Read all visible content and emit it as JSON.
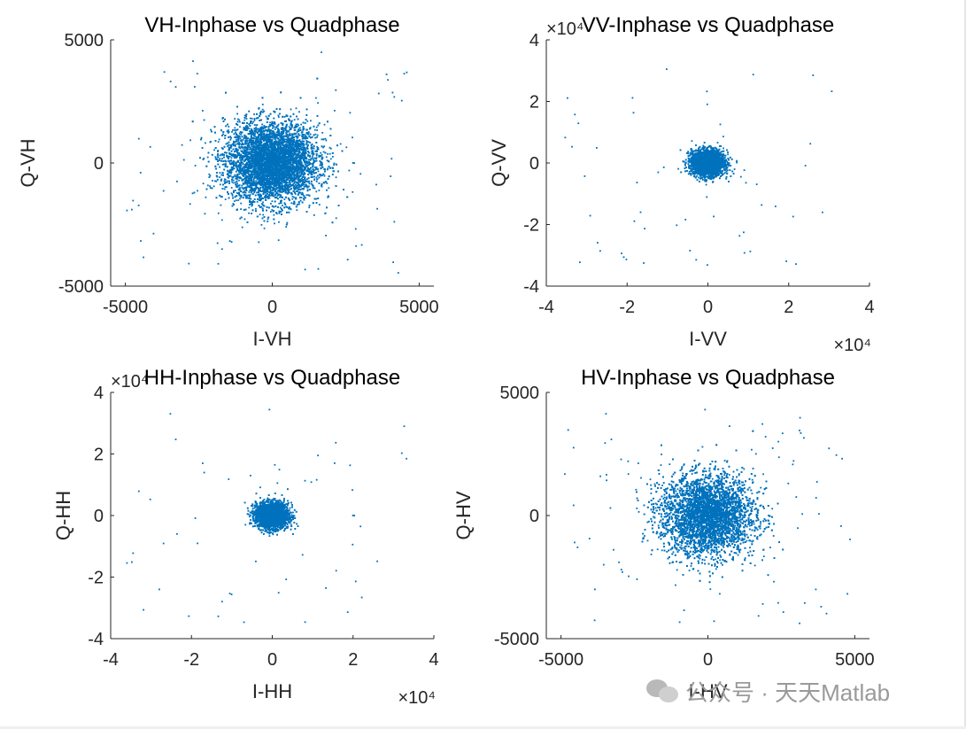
{
  "chart_data": [
    {
      "type": "scatter",
      "title": "VH-Inphase vs Quadphase",
      "xlabel": "I-VH",
      "ylabel": "Q-VH",
      "xlim": [
        -5500,
        5500
      ],
      "ylim": [
        -5000,
        5000
      ],
      "xticks": [
        -5000,
        0,
        5000
      ],
      "xtick_labels": [
        "-5000",
        "0",
        "5000"
      ],
      "yticks": [
        -5000,
        0,
        5000
      ],
      "ytick_labels": [
        "-5000",
        "0",
        "5000"
      ],
      "x_exponent": "",
      "y_exponent": "",
      "grid": false,
      "color": "#0072BD",
      "cluster": {
        "center": [
          0,
          0
        ],
        "std": [
          800,
          800
        ],
        "count": 9000
      }
    },
    {
      "type": "scatter",
      "title": "VV-Inphase vs Quadphase",
      "xlabel": "I-VV",
      "ylabel": "Q-VV",
      "xlim": [
        -4,
        4
      ],
      "ylim": [
        -4,
        4
      ],
      "xticks": [
        -4,
        -2,
        0,
        2,
        4
      ],
      "xtick_labels": [
        "-4",
        "-2",
        "0",
        "2",
        "4"
      ],
      "yticks": [
        -4,
        -2,
        0,
        2,
        4
      ],
      "ytick_labels": [
        "-4",
        "-2",
        "0",
        "2",
        "4"
      ],
      "x_exponent": "×10⁴",
      "y_exponent": "×10⁴",
      "grid": false,
      "color": "#0072BD",
      "cluster": {
        "center": [
          0,
          0
        ],
        "std": [
          0.2,
          0.2
        ],
        "count": 5000
      }
    },
    {
      "type": "scatter",
      "title": "HH-Inphase vs Quadphase",
      "xlabel": "I-HH",
      "ylabel": "Q-HH",
      "xlim": [
        -4,
        4
      ],
      "ylim": [
        -4,
        4
      ],
      "xticks": [
        -4,
        -2,
        0,
        2,
        4
      ],
      "xtick_labels": [
        "-4",
        "-2",
        "0",
        "2",
        "4"
      ],
      "yticks": [
        -4,
        -2,
        0,
        2,
        4
      ],
      "ytick_labels": [
        "-4",
        "-2",
        "0",
        "2",
        "4"
      ],
      "x_exponent": "×10⁴",
      "y_exponent": "×10⁴",
      "grid": false,
      "color": "#0072BD",
      "cluster": {
        "center": [
          0,
          0
        ],
        "std": [
          0.2,
          0.2
        ],
        "count": 5000
      }
    },
    {
      "type": "scatter",
      "title": "HV-Inphase vs Quadphase",
      "xlabel": "I-HV",
      "ylabel": "Q-HV",
      "xlim": [
        -5500,
        5500
      ],
      "ylim": [
        -5000,
        5000
      ],
      "xticks": [
        -5000,
        0,
        5000
      ],
      "xtick_labels": [
        "-5000",
        "0",
        "5000"
      ],
      "yticks": [
        -5000,
        0,
        5000
      ],
      "ytick_labels": [
        "-5000",
        "0",
        "5000"
      ],
      "x_exponent": "",
      "y_exponent": "",
      "grid": false,
      "color": "#0072BD",
      "cluster": {
        "center": [
          0,
          0
        ],
        "std": [
          800,
          800
        ],
        "count": 9000
      }
    }
  ],
  "watermark": {
    "text": "公众号 · 天天Matlab",
    "icon": "wechat-icon"
  }
}
